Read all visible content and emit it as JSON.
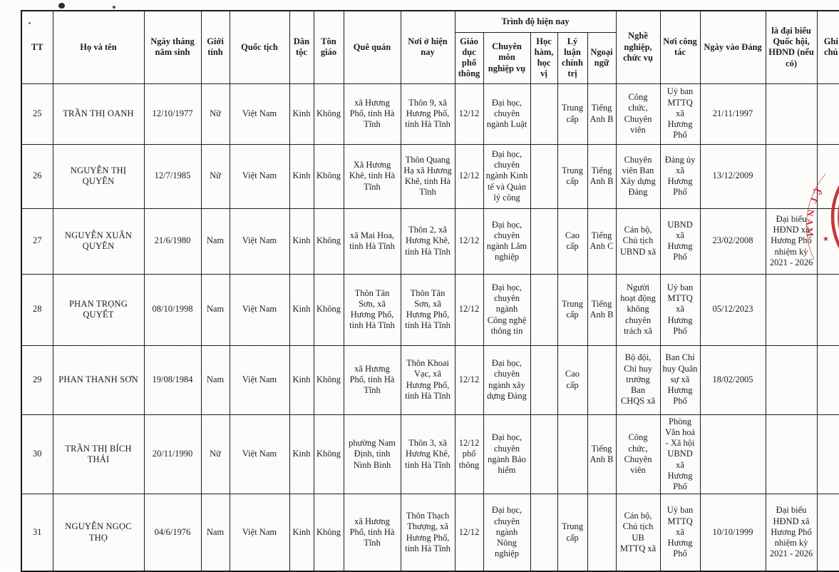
{
  "table": {
    "columns": {
      "tt": "TT",
      "name": "Họ và tên",
      "dob": "Ngày tháng năm sinh",
      "gender": "Giới tính",
      "nationality": "Quốc tịch",
      "ethnicity": "Dân tộc",
      "religion": "Tôn giáo",
      "hometown": "Quê quán",
      "residence": "Nơi ở hiện nay",
      "education_group": "Trình độ hiện nay",
      "edu_general": "Giáo dục phổ thông",
      "edu_professional": "Chuyên môn nghiệp vụ",
      "edu_academic": "Học hàm, học vị",
      "edu_political": "Lý luận chính trị",
      "edu_language": "Ngoại ngữ",
      "occupation": "Nghề nghiệp, chức vụ",
      "workplace": "Nơi công tác",
      "party_join_date": "Ngày vào Đảng",
      "delegate": "là đại biểu Quốc hội, HĐND (nếu có)",
      "notes": "Ghi chú"
    },
    "rows": [
      {
        "tt": "25",
        "name": "TRẦN THỊ OANH",
        "dob": "12/10/1977",
        "gender": "Nữ",
        "nationality": "Việt Nam",
        "ethnicity": "Kinh",
        "religion": "Không",
        "hometown": "xã Hương Phố, tỉnh Hà Tĩnh",
        "residence": "Thôn 9, xã Hương Phố, tỉnh Hà Tĩnh",
        "edu_general": "12/12",
        "edu_professional": "Đại học, chuyên ngành Luật",
        "edu_academic": "",
        "edu_political": "Trung cấp",
        "edu_language": "Tiếng Anh B",
        "occupation": "Công chức, Chuyên viên",
        "workplace": "Uỷ ban MTTQ xã Hương Phố",
        "party_join_date": "21/11/1997",
        "delegate": "",
        "notes": ""
      },
      {
        "tt": "26",
        "name": "NGUYỄN THỊ QUYÊN",
        "dob": "12/7/1985",
        "gender": "Nữ",
        "nationality": "Việt Nam",
        "ethnicity": "Kinh",
        "religion": "Không",
        "hometown": "Xã Hương Khê, tỉnh Hà Tĩnh",
        "residence": "Thôn Quang Hạ xã Hương Khê, tỉnh Hà Tĩnh",
        "edu_general": "12/12",
        "edu_professional": "Đại học, chuyên ngành Kinh tế và Quản lý công",
        "edu_academic": "",
        "edu_political": "Trung cấp",
        "edu_language": "Tiếng Anh B",
        "occupation": "Chuyên viên Ban Xây dựng Đảng",
        "workplace": "Đảng ủy xã Hương Phố",
        "party_join_date": "13/12/2009",
        "delegate": "",
        "notes": ""
      },
      {
        "tt": "27",
        "name": "NGUYỄN XUÂN QUYÊN",
        "dob": "21/6/1980",
        "gender": "Nam",
        "nationality": "Việt Nam",
        "ethnicity": "Kinh",
        "religion": "Không",
        "hometown": "xã Mai Hoa, tỉnh Hà Tĩnh",
        "residence": "Thôn 2, xã Hương Khê, tỉnh Hà Tĩnh",
        "edu_general": "12/12",
        "edu_professional": "Đại học, chuyên ngành Lâm nghiệp",
        "edu_academic": "",
        "edu_political": "Cao cấp",
        "edu_language": "Tiếng Anh C",
        "occupation": "Cán bộ, Chủ tịch UBND xã",
        "workplace": "UBND xã Hương Phố",
        "party_join_date": "23/02/2008",
        "delegate": "Đại biểu HĐND xã Hương Phố nhiệm kỳ 2021 - 2026",
        "notes": ""
      },
      {
        "tt": "28",
        "name": "PHAN TRỌNG QUYẾT",
        "dob": "08/10/1998",
        "gender": "Nam",
        "nationality": "Việt Nam",
        "ethnicity": "Kinh",
        "religion": "Không",
        "hometown": "Thôn Tân Sơn, xã Hương Phố, tỉnh Hà Tĩnh",
        "residence": "Thôn Tân Sơn, xã Hương Phố, tỉnh Hà Tĩnh",
        "edu_general": "12/12",
        "edu_professional": "Đại học, chuyên ngành Công nghệ thông tin",
        "edu_academic": "",
        "edu_political": "Trung cấp",
        "edu_language": "Tiếng Anh B",
        "occupation": "Người hoạt động không chuyên trách xã",
        "workplace": "Uỷ ban MTTQ xã Hương Phố",
        "party_join_date": "05/12/2023",
        "delegate": "",
        "notes": ""
      },
      {
        "tt": "29",
        "name": "PHAN THANH SƠN",
        "dob": "19/08/1984",
        "gender": "Nam",
        "nationality": "Việt Nam",
        "ethnicity": "Kinh",
        "religion": "Không",
        "hometown": "xã Hương Phố, tỉnh Hà Tĩnh",
        "residence": "Thôn Khoai Vạc, xã Hương Phố, tỉnh Hà Tĩnh",
        "edu_general": "12/12",
        "edu_professional": "Đại học, chuyên ngành xây dựng Đảng",
        "edu_academic": "",
        "edu_political": "Cao cấp",
        "edu_language": "",
        "occupation": "Bộ đội, Chỉ huy trưởng Ban CHQS xã",
        "workplace": "Ban Chỉ huy Quân sự xã Hương Phố",
        "party_join_date": "18/02/2005",
        "delegate": "",
        "notes": ""
      },
      {
        "tt": "30",
        "name": "TRẦN THỊ BÍCH THÁI",
        "dob": "20/11/1990",
        "gender": "Nữ",
        "nationality": "Việt Nam",
        "ethnicity": "Kinh",
        "religion": "Không",
        "hometown": "phường Nam Định, tỉnh Ninh Bình",
        "residence": "Thôn 3, xã Hương Khê, tỉnh Hà Tĩnh",
        "edu_general": "12/12 phổ thông",
        "edu_professional": "Đại học, chuyên ngành Bảo hiểm",
        "edu_academic": "",
        "edu_political": "",
        "edu_language": "Tiếng Anh B",
        "occupation": "Công chức, Chuyên viên",
        "workplace": "Phòng Văn hoá - Xã hội UBND xã Hương Phố",
        "party_join_date": "",
        "delegate": "",
        "notes": ""
      },
      {
        "tt": "31",
        "name": "NGUYỄN NGỌC THỌ",
        "dob": "04/6/1976",
        "gender": "Nam",
        "nationality": "Việt Nam",
        "ethnicity": "Kinh",
        "religion": "Không",
        "hometown": "xã Hương Phố, tỉnh Hà Tĩnh",
        "residence": "Thôn Thạch Thượng, xã Hương Phố, tỉnh Hà Tĩnh",
        "edu_general": "12/12",
        "edu_professional": "Đại học, chuyên ngành Nông nghiệp",
        "edu_academic": "",
        "edu_political": "Trung cấp",
        "edu_language": "",
        "occupation": "Cán bộ, Chủ tịch UB MTTQ xã",
        "workplace": "Uỷ ban MTTQ xã Hương Phố",
        "party_join_date": "10/10/1999",
        "delegate": "Đại biểu HĐND xã Hương Phố nhiệm kỳ 2021 - 2026",
        "notes": ""
      }
    ]
  },
  "stamp": {
    "color": "#c0272d",
    "text_fragment": "ỆT NAM"
  }
}
